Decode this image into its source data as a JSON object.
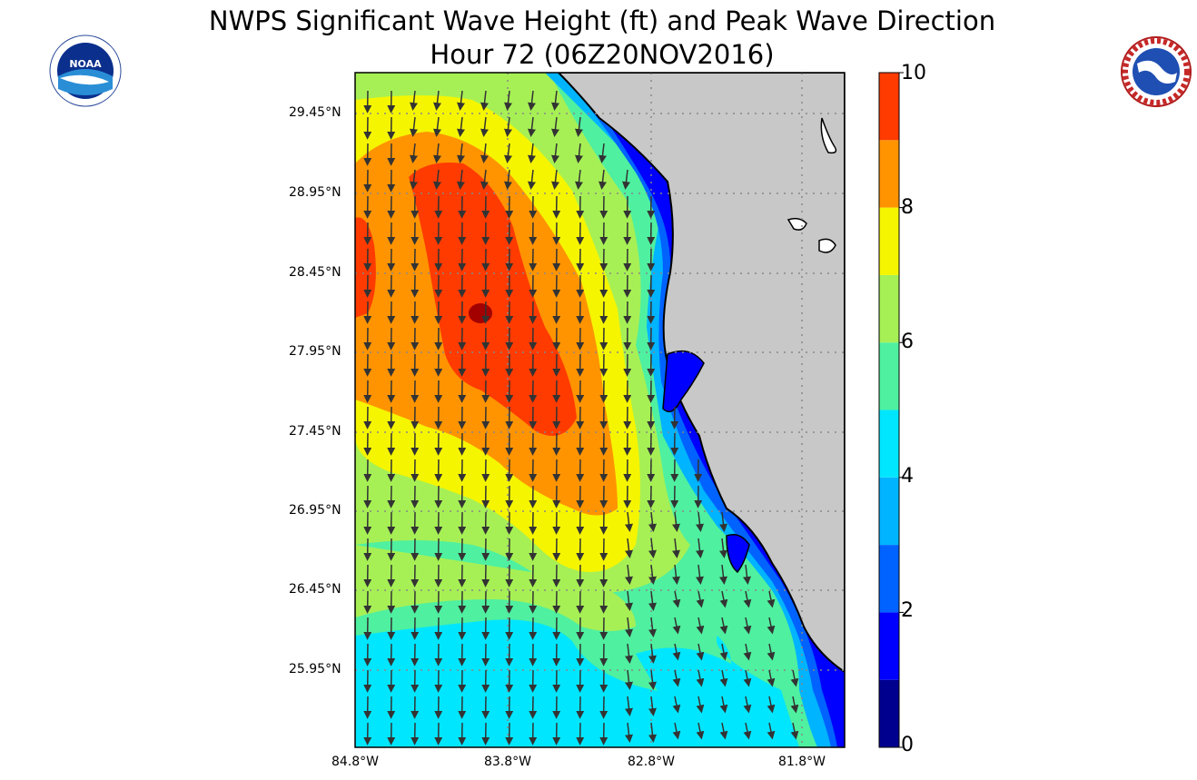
{
  "title": "NWPS Significant Wave Height (ft) and Peak Wave Direction",
  "subtitle": "Hour 72 (06Z20NOV2016)",
  "logos": {
    "left": {
      "name": "noaa-logo",
      "text": "NOAA"
    },
    "right": {
      "name": "nws-logo",
      "text": "NATIONAL WEATHER SERVICE"
    }
  },
  "chart_data": {
    "type": "heatmap",
    "title": "NWPS Significant Wave Height (ft) and Peak Wave Direction",
    "subtitle": "Hour 72 (06Z20NOV2016)",
    "variable": "Significant Wave Height (ft)",
    "vector_field": "Peak Wave Direction",
    "lat_tick_labels": [
      "29.45°N",
      "28.95°N",
      "28.45°N",
      "27.95°N",
      "27.45°N",
      "26.95°N",
      "26.45°N",
      "25.95°N"
    ],
    "lon_tick_labels": [
      "84.8°W",
      "83.8°W",
      "82.8°W",
      "81.8°W"
    ],
    "lat_range": [
      25.5,
      29.7
    ],
    "lon_range": [
      -84.8,
      -81.4
    ],
    "colorbar_range": [
      0,
      10
    ],
    "colorbar_tick_labels": [
      "0",
      "2",
      "4",
      "6",
      "8",
      "10"
    ],
    "colorbar_levels": [
      0,
      1,
      2,
      3,
      4,
      5,
      6,
      7,
      8,
      9,
      10
    ],
    "colorbar_colors": [
      "#00008f",
      "#0000ff",
      "#0063ff",
      "#00b4ff",
      "#00e6ff",
      "#4ff0a0",
      "#a6f055",
      "#f5f500",
      "#ff9400",
      "#ff3b00",
      "#a30000"
    ],
    "peak_wave_direction": "mostly from north (arrows pointing south), turning southeast near the coast",
    "max_wave_height_ft": 9.2,
    "grid": true,
    "land_color": "#c8c8c8"
  }
}
